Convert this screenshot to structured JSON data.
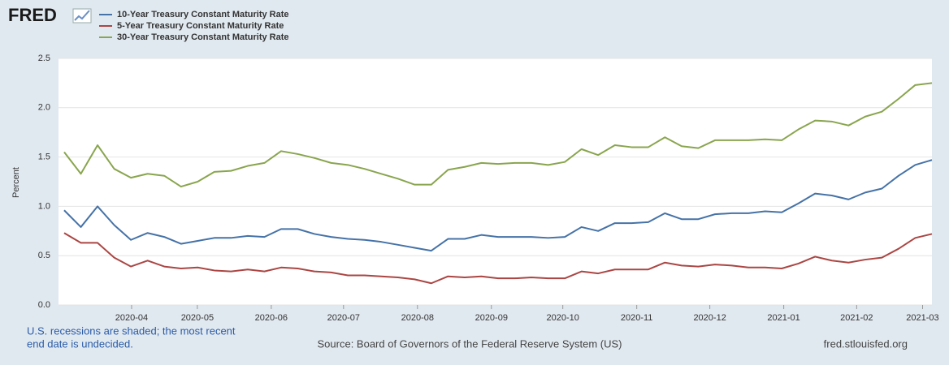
{
  "logo": "FRED",
  "notes": [
    "U.S. recessions are shaded; the most recent",
    "end date is undecided."
  ],
  "source": "Source: Board of Governors of the Federal Reserve System (US)",
  "site": "fred.stlouisfed.org",
  "chart_data": {
    "type": "line",
    "ylabel": "Percent",
    "ylim": [
      0,
      2.5
    ],
    "yticks": [
      {
        "value": 0,
        "label": "0.0"
      },
      0.5,
      {
        "value": 1,
        "label": "1.0"
      },
      1.5,
      {
        "value": 2,
        "label": "2.0"
      },
      2.5
    ],
    "xlim": [
      -0.34,
      52
    ],
    "xticks": [
      {
        "value": 4.04,
        "label": "2020-04"
      },
      {
        "value": 7.98,
        "label": "2020-05"
      },
      {
        "value": 12.41,
        "label": "2020-06"
      },
      {
        "value": 16.74,
        "label": "2020-07"
      },
      {
        "value": 21.17,
        "label": "2020-08"
      },
      {
        "value": 25.6,
        "label": "2020-09"
      },
      {
        "value": 29.88,
        "label": "2020-10"
      },
      {
        "value": 34.31,
        "label": "2020-11"
      },
      {
        "value": 38.69,
        "label": "2020-12"
      },
      {
        "value": 43.12,
        "label": "2021-01"
      },
      {
        "value": 47.49,
        "label": "2021-02"
      },
      {
        "value": 51.44,
        "label": "2021-03"
      }
    ],
    "grid": true,
    "legend": "top-left",
    "series": [
      {
        "name": "10-Year Treasury Constant Maturity Rate",
        "color": "#4572a7",
        "values": [
          0.96,
          0.79,
          1.0,
          0.81,
          0.66,
          0.73,
          0.69,
          0.62,
          0.65,
          0.68,
          0.68,
          0.7,
          0.69,
          0.77,
          0.77,
          0.72,
          0.69,
          0.67,
          0.66,
          0.64,
          0.61,
          0.58,
          0.55,
          0.67,
          0.67,
          0.71,
          0.69,
          0.69,
          0.69,
          0.68,
          0.69,
          0.79,
          0.75,
          0.83,
          0.83,
          0.84,
          0.93,
          0.87,
          0.87,
          0.92,
          0.93,
          0.93,
          0.95,
          0.94,
          1.03,
          1.13,
          1.11,
          1.07,
          1.14,
          1.18,
          1.31,
          1.42,
          1.47
        ]
      },
      {
        "name": "5-Year Treasury Constant Maturity Rate",
        "color": "#aa4643",
        "values": [
          0.73,
          0.63,
          0.63,
          0.48,
          0.39,
          0.45,
          0.39,
          0.37,
          0.38,
          0.35,
          0.34,
          0.36,
          0.34,
          0.38,
          0.37,
          0.34,
          0.33,
          0.3,
          0.3,
          0.29,
          0.28,
          0.26,
          0.22,
          0.29,
          0.28,
          0.29,
          0.27,
          0.27,
          0.28,
          0.27,
          0.27,
          0.34,
          0.32,
          0.36,
          0.36,
          0.36,
          0.43,
          0.4,
          0.39,
          0.41,
          0.4,
          0.38,
          0.38,
          0.37,
          0.42,
          0.49,
          0.45,
          0.43,
          0.46,
          0.48,
          0.57,
          0.68,
          0.72
        ]
      },
      {
        "name": "30-Year Treasury Constant Maturity Rate",
        "color": "#89a54e",
        "values": [
          1.55,
          1.33,
          1.62,
          1.38,
          1.29,
          1.33,
          1.31,
          1.2,
          1.25,
          1.35,
          1.36,
          1.41,
          1.44,
          1.56,
          1.53,
          1.49,
          1.44,
          1.42,
          1.38,
          1.33,
          1.28,
          1.22,
          1.22,
          1.37,
          1.4,
          1.44,
          1.43,
          1.44,
          1.44,
          1.42,
          1.45,
          1.58,
          1.52,
          1.62,
          1.6,
          1.6,
          1.7,
          1.61,
          1.59,
          1.67,
          1.67,
          1.67,
          1.68,
          1.67,
          1.78,
          1.87,
          1.86,
          1.82,
          1.91,
          1.96,
          2.09,
          2.23,
          2.25
        ]
      }
    ]
  }
}
